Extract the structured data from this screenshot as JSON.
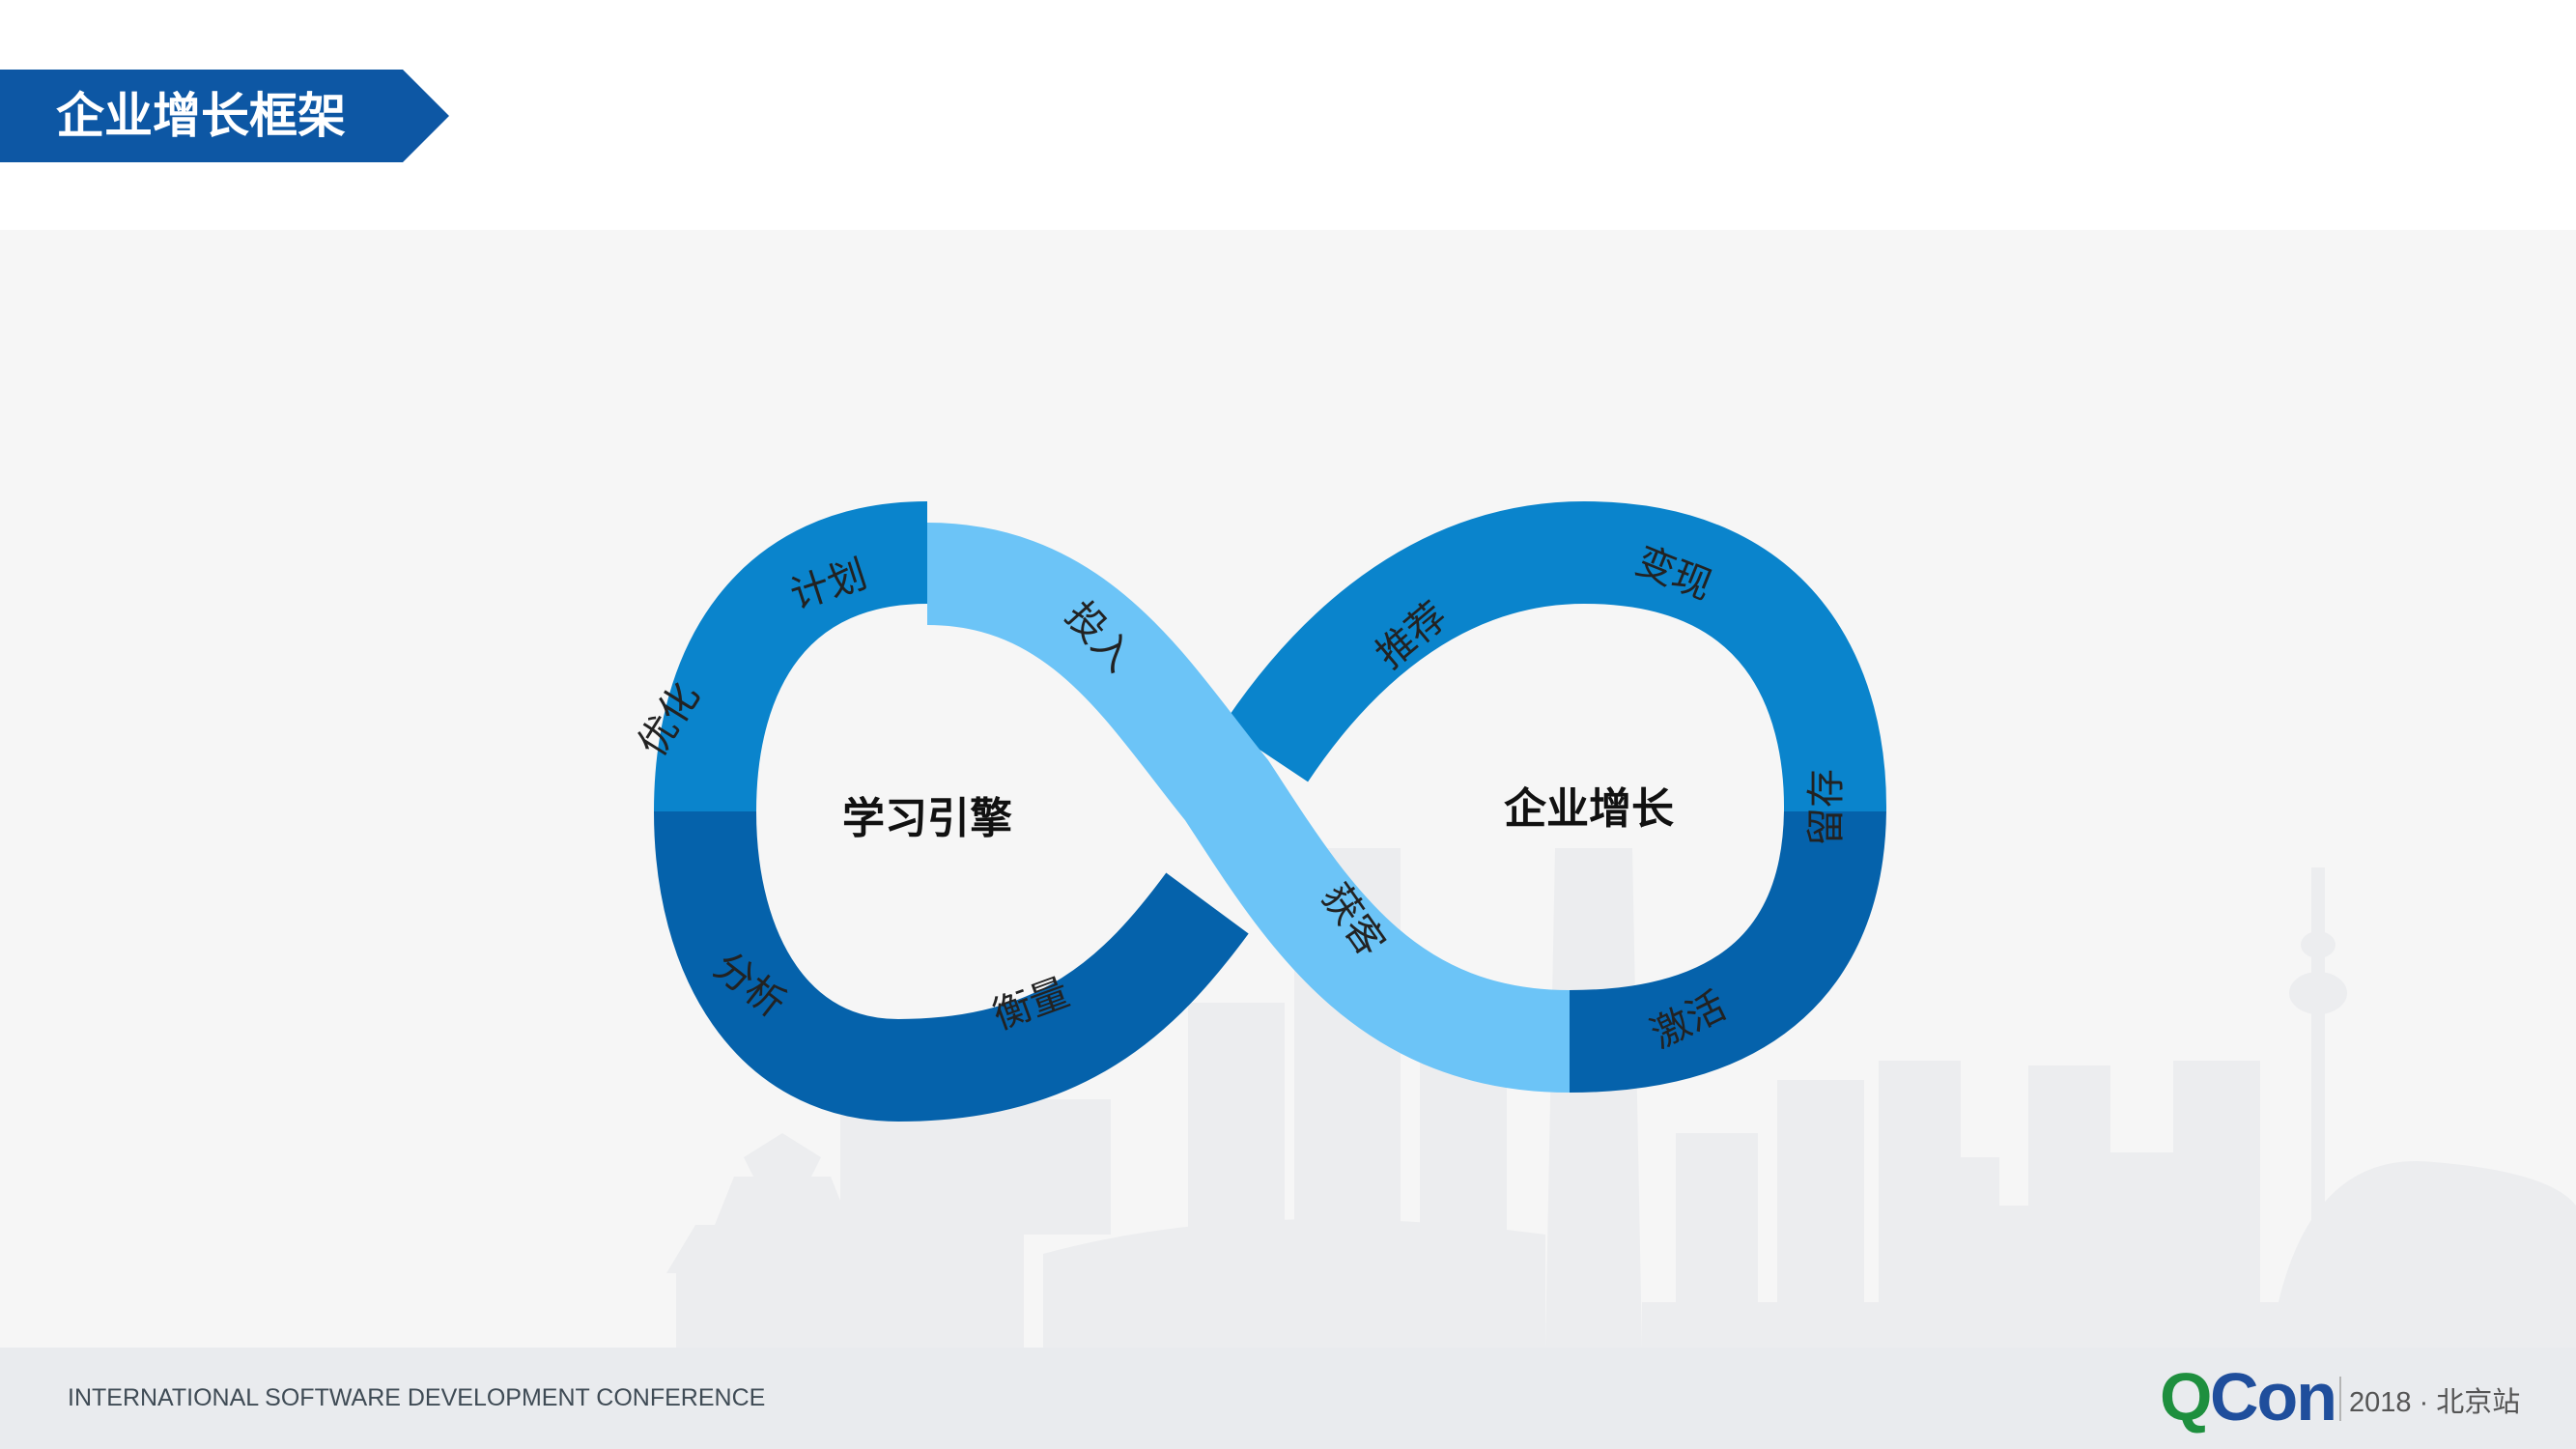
{
  "header": {
    "title": "企业增长框架"
  },
  "diagram": {
    "left_loop_label": "学习引擎",
    "right_loop_label": "企业增长",
    "stages": {
      "plan": "计划",
      "invest": "投入",
      "recommend": "推荐",
      "monetize": "变现",
      "retain": "留存",
      "activate": "激活",
      "acquire": "获客",
      "measure": "衡量",
      "analyze": "分析",
      "optimize": "优化"
    },
    "colors": {
      "mid_blue": "#0a84cc",
      "dark_blue": "#0562ab",
      "light_blue": "#6cc4f7",
      "banner_blue": "#0d57a4"
    }
  },
  "footer": {
    "conference_text": "INTERNATIONAL SOFTWARE DEVELOPMENT CONFERENCE",
    "logo_q": "Q",
    "logo_con": "Con",
    "edition": "2018 · 北京站"
  }
}
